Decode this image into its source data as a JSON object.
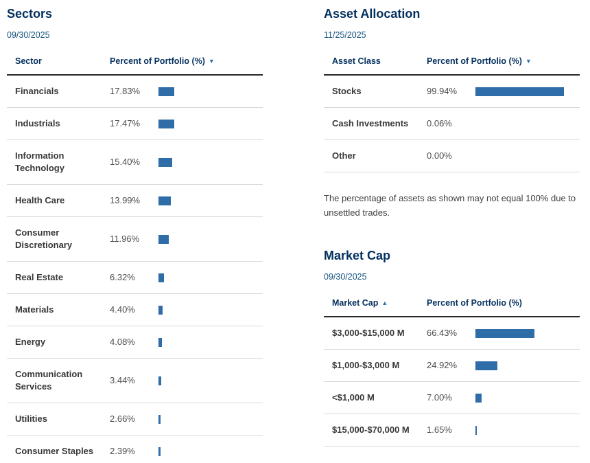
{
  "colors": {
    "bar": "#2f6da8",
    "accent_navy": "#03305f",
    "sort_arrow": "#2b74b1"
  },
  "sections": {
    "sectors": {
      "title": "Sectors",
      "date": "09/30/2025",
      "columns": {
        "col1": "Sector",
        "col1_arrow": "",
        "col2": "Percent of Portfolio (%)",
        "col2_arrow": "▼"
      },
      "rows": [
        {
          "label": "Financials",
          "pct": "17.83%",
          "value": 17.83
        },
        {
          "label": "Industrials",
          "pct": "17.47%",
          "value": 17.47
        },
        {
          "label": "Information Technology",
          "pct": "15.40%",
          "value": 15.4
        },
        {
          "label": "Health Care",
          "pct": "13.99%",
          "value": 13.99
        },
        {
          "label": "Consumer Discretionary",
          "pct": "11.96%",
          "value": 11.96
        },
        {
          "label": "Real Estate",
          "pct": "6.32%",
          "value": 6.32
        },
        {
          "label": "Materials",
          "pct": "4.40%",
          "value": 4.4
        },
        {
          "label": "Energy",
          "pct": "4.08%",
          "value": 4.08
        },
        {
          "label": "Communication Services",
          "pct": "3.44%",
          "value": 3.44
        },
        {
          "label": "Utilities",
          "pct": "2.66%",
          "value": 2.66
        },
        {
          "label": "Consumer Staples",
          "pct": "2.39%",
          "value": 2.39
        }
      ]
    },
    "asset_allocation": {
      "title": "Asset Allocation",
      "date": "11/25/2025",
      "columns": {
        "col1": "Asset Class",
        "col1_arrow": "",
        "col2": "Percent of Portfolio (%)",
        "col2_arrow": "▼"
      },
      "rows": [
        {
          "label": "Stocks",
          "pct": "99.94%",
          "value": 99.94
        },
        {
          "label": "Cash Investments",
          "pct": "0.06%",
          "value": 0.06
        },
        {
          "label": "Other",
          "pct": "0.00%",
          "value": 0.0
        }
      ],
      "footnote": "The percentage of assets as shown may not equal 100% due to unsettled trades."
    },
    "market_cap": {
      "title": "Market Cap",
      "date": "09/30/2025",
      "columns": {
        "col1": "Market Cap",
        "col1_arrow": "▲",
        "col2": "Percent of Portfolio (%)",
        "col2_arrow": ""
      },
      "rows": [
        {
          "label": "$3,000-$15,000 M",
          "pct": "66.43%",
          "value": 66.43
        },
        {
          "label": "$1,000-$3,000 M",
          "pct": "24.92%",
          "value": 24.92
        },
        {
          "label": "<$1,000 M",
          "pct": "7.00%",
          "value": 7.0
        },
        {
          "label": "$15,000-$70,000 M",
          "pct": "1.65%",
          "value": 1.65
        }
      ]
    }
  }
}
